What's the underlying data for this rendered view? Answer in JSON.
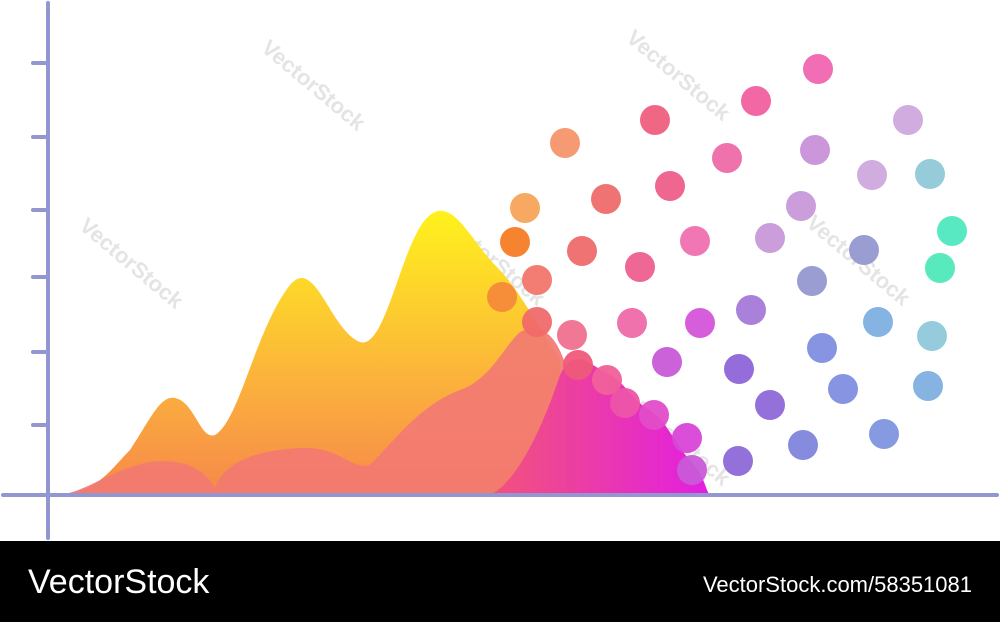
{
  "watermark": "VectorStock",
  "footer": {
    "brand": "VectorStock",
    "id": "VectorStock.com/58351081"
  }
}
